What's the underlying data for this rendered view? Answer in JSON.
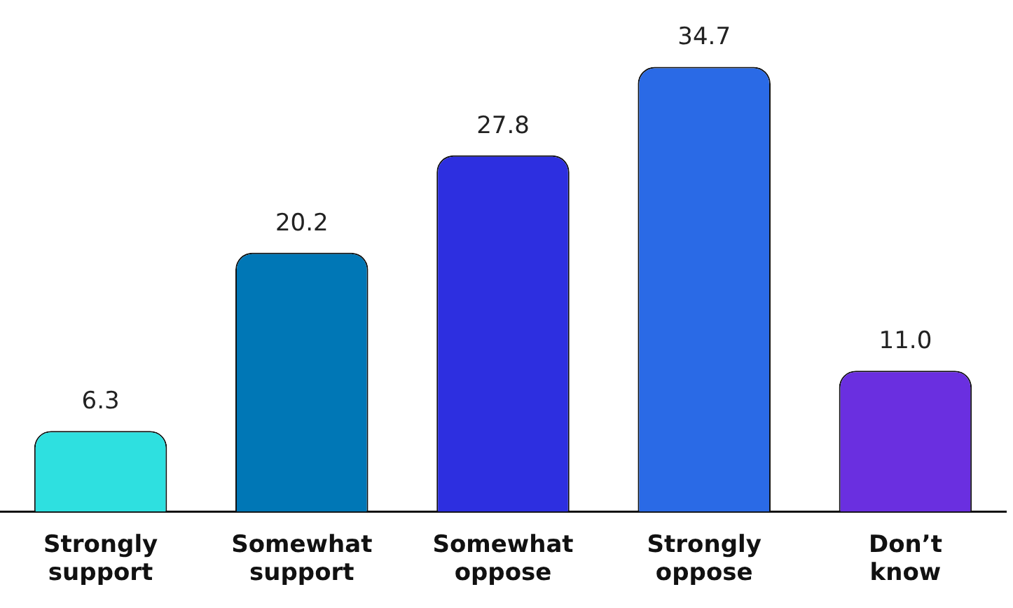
{
  "chart_data": {
    "type": "bar",
    "categories": [
      "Strongly support",
      "Somewhat support",
      "Somewhat oppose",
      "Strongly oppose",
      "Don’t know"
    ],
    "values": [
      6.3,
      20.2,
      27.8,
      34.7,
      11.0
    ],
    "colors": [
      "#2ee0e0",
      "#0077b6",
      "#2d2fe0",
      "#2a6ae6",
      "#6a2fe0"
    ],
    "value_labels": [
      "6.3",
      "20.2",
      "27.8",
      "34.7",
      "11.0"
    ],
    "grid": false,
    "legend": false
  }
}
